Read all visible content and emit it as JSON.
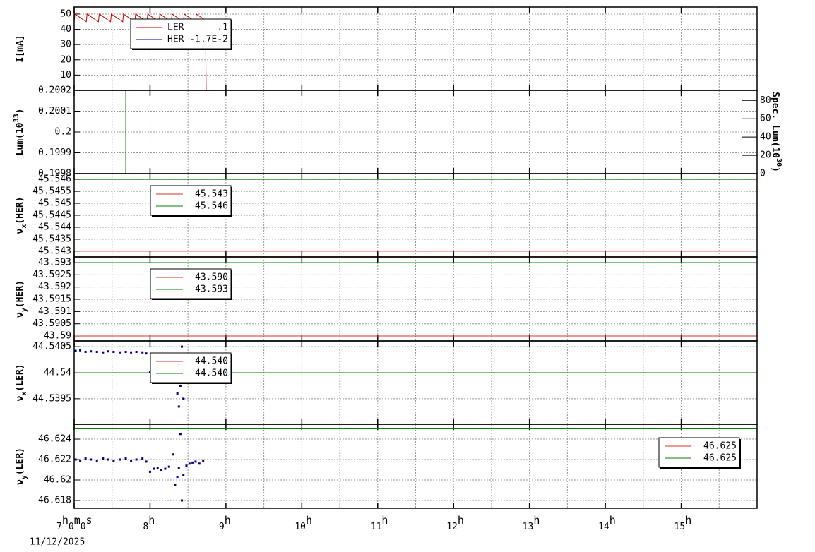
{
  "chart_data": [
    {
      "type": "line",
      "ylabel": [
        "I[mA]"
      ],
      "xlim": [
        7,
        16
      ],
      "ylim": [
        0,
        54.6
      ],
      "yticks": [
        10,
        20,
        30,
        40,
        50
      ],
      "grid": true,
      "legend": "upper-left",
      "series": [
        {
          "name": "LER",
          "legend_value": ".1",
          "color": "#cc0000",
          "x": [
            7,
            7.01,
            7.16,
            7.17,
            7.32,
            7.33,
            7.48,
            7.49,
            7.64,
            7.65,
            7.8,
            7.81,
            7.96,
            7.97,
            8.12,
            8.13,
            8.28,
            8.29,
            8.44,
            8.45,
            8.6,
            8.61,
            8.73,
            8.74,
            16
          ],
          "values": [
            45,
            50,
            45,
            50,
            45,
            50,
            45,
            50,
            45,
            50,
            45,
            50,
            45,
            50,
            45,
            50,
            45,
            50,
            45,
            50,
            45,
            50,
            46,
            0,
            0.1
          ]
        },
        {
          "name": "HER",
          "legend_value": "-1.7E-2",
          "color": "#000080",
          "x": [
            7,
            16
          ],
          "values": [
            0,
            0
          ]
        }
      ]
    },
    {
      "type": "line",
      "ylabel": [
        "Lum(10",
        "33",
        ")"
      ],
      "ylabel_script": "sup",
      "y2label": [
        "Spec. Lum(10",
        "30",
        ")"
      ],
      "y2label_script": "sup",
      "xlim": [
        7,
        16
      ],
      "ylim": [
        0.1998,
        0.2002
      ],
      "yticks": [
        0.1998,
        0.1999,
        0.2,
        0.2001,
        0.2002
      ],
      "y2lim": [
        0,
        91
      ],
      "y2ticks": [
        0,
        20,
        40,
        60,
        80
      ],
      "grid": true,
      "series": [
        {
          "color": "#000080",
          "x": [
            7,
            16
          ],
          "values": [
            0.2002,
            0.2002
          ]
        },
        {
          "color": "#006400",
          "x": [
            7.68,
            7.68
          ],
          "values": [
            0.1998,
            0.2002
          ]
        }
      ]
    },
    {
      "type": "line",
      "ylabel": [
        "ν",
        "x",
        "(HER)"
      ],
      "ylabel_script": "sub",
      "xlim": [
        7,
        16
      ],
      "ylim": [
        45.54276,
        45.54624
      ],
      "yticks": [
        45.543,
        45.5435,
        45.544,
        45.5445,
        45.545,
        45.5455,
        45.546
      ],
      "grid": true,
      "legend": "upper-left",
      "series": [
        {
          "name": "45.543",
          "color": "#e03020",
          "x": [
            7,
            16
          ],
          "values": [
            45.543,
            45.543
          ]
        },
        {
          "name": "45.546",
          "color": "#008000",
          "x": [
            7,
            16
          ],
          "values": [
            45.546,
            45.546
          ]
        }
      ]
    },
    {
      "type": "line",
      "ylabel": [
        "ν",
        "y",
        "(HER)"
      ],
      "ylabel_script": "sub",
      "xlim": [
        7,
        16
      ],
      "ylim": [
        43.5898,
        43.59323
      ],
      "yticks": [
        43.59,
        43.5905,
        43.591,
        43.5915,
        43.592,
        43.5925,
        43.593
      ],
      "grid": true,
      "legend": "upper-left",
      "series": [
        {
          "name": "43.590",
          "color": "#e03020",
          "x": [
            7,
            16
          ],
          "values": [
            43.59,
            43.59
          ]
        },
        {
          "name": "43.593",
          "color": "#008000",
          "x": [
            7,
            16
          ],
          "values": [
            43.593,
            43.593
          ]
        }
      ]
    },
    {
      "type": "line",
      "ylabel": [
        "ν",
        "x",
        "(LER)"
      ],
      "ylabel_script": "sub",
      "xlim": [
        7,
        16
      ],
      "ylim": [
        44.53901,
        44.54061
      ],
      "yticks": [
        44.5395,
        44.54,
        44.5405
      ],
      "grid": true,
      "legend": "upper-left",
      "series": [
        {
          "name": "44.540",
          "color": "#e03020",
          "x": [
            7,
            16
          ],
          "values": [
            44.54,
            44.54
          ]
        },
        {
          "name": "44.540",
          "color": "#008000",
          "x": [
            7,
            16
          ],
          "values": [
            44.54,
            44.54
          ]
        },
        {
          "type": "scatter",
          "color": "#000080",
          "x": [
            7.02,
            7.08,
            7.15,
            7.22,
            7.3,
            7.38,
            7.45,
            7.52,
            7.6,
            7.68,
            7.75,
            7.82,
            7.9,
            7.95,
            8.0,
            8.05,
            8.1,
            8.15,
            8.2,
            8.25,
            8.3,
            8.33,
            8.36,
            8.38,
            8.4,
            8.42,
            8.44,
            8.48,
            8.52,
            8.56,
            8.6,
            8.65,
            8.7
          ],
          "values": [
            44.54042,
            44.54043,
            44.5404,
            44.54041,
            44.5404,
            44.54039,
            44.54041,
            44.5404,
            44.54039,
            44.5404,
            44.54039,
            44.5404,
            44.54039,
            44.54037,
            44.54002,
            44.54003,
            44.54002,
            44.54004,
            44.54001,
            44.54006,
            44.54003,
            44.53985,
            44.5396,
            44.53935,
            44.53975,
            44.5405,
            44.5395,
            44.54008,
            44.54015,
            44.54018,
            44.5402,
            44.54016,
            44.54019
          ]
        }
      ]
    },
    {
      "type": "line",
      "ylabel": [
        "ν",
        "y",
        "(LER)"
      ],
      "ylabel_script": "sub",
      "xlim": [
        7,
        16
      ],
      "ylim": [
        46.61724,
        46.62545
      ],
      "yticks": [
        46.618,
        46.62,
        46.622,
        46.624
      ],
      "grid": true,
      "legend": "upper-right",
      "xticks": [
        {
          "value": 7,
          "label": "7h0m0s"
        },
        {
          "value": 8,
          "label": "8h"
        },
        {
          "value": 9,
          "label": "9h"
        },
        {
          "value": 10,
          "label": "10h"
        },
        {
          "value": 11,
          "label": "11h"
        },
        {
          "value": 12,
          "label": "12h"
        },
        {
          "value": 13,
          "label": "13h"
        },
        {
          "value": 14,
          "label": "14h"
        },
        {
          "value": 15,
          "label": "15h"
        }
      ],
      "date": "11/12/2025",
      "series": [
        {
          "name": "46.625",
          "color": "#e03020",
          "x": [
            7,
            16
          ],
          "values": [
            46.625,
            46.625
          ]
        },
        {
          "name": "46.625",
          "color": "#008000",
          "x": [
            7,
            16
          ],
          "values": [
            46.625,
            46.625
          ]
        },
        {
          "type": "scatter",
          "color": "#000080",
          "x": [
            7.02,
            7.08,
            7.15,
            7.22,
            7.3,
            7.38,
            7.45,
            7.52,
            7.6,
            7.68,
            7.75,
            7.82,
            7.9,
            7.95,
            8.0,
            8.05,
            8.1,
            8.15,
            8.2,
            8.25,
            8.3,
            8.33,
            8.36,
            8.38,
            8.4,
            8.42,
            8.44,
            8.48,
            8.52,
            8.56,
            8.6,
            8.65,
            8.7
          ],
          "values": [
            46.622,
            46.6219,
            46.6221,
            46.622,
            46.6219,
            46.6221,
            46.622,
            46.6219,
            46.622,
            46.6221,
            46.6219,
            46.622,
            46.6221,
            46.6218,
            46.6208,
            46.6211,
            46.6212,
            46.621,
            46.6211,
            46.6213,
            46.6225,
            46.6195,
            46.6203,
            46.6212,
            46.6245,
            46.618,
            46.6205,
            46.6214,
            46.6216,
            46.6217,
            46.6218,
            46.6216,
            46.6219
          ]
        }
      ]
    }
  ]
}
